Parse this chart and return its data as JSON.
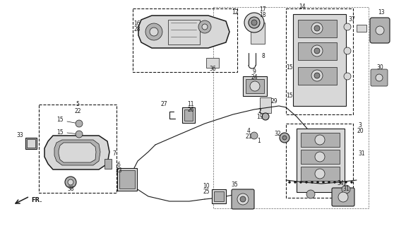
{
  "bg_color": "#ffffff",
  "lc": "#1a1a1a",
  "gc": "#666666",
  "fc_light": "#d8d8d8",
  "fc_mid": "#b0b0b0",
  "fc_dark": "#888888"
}
